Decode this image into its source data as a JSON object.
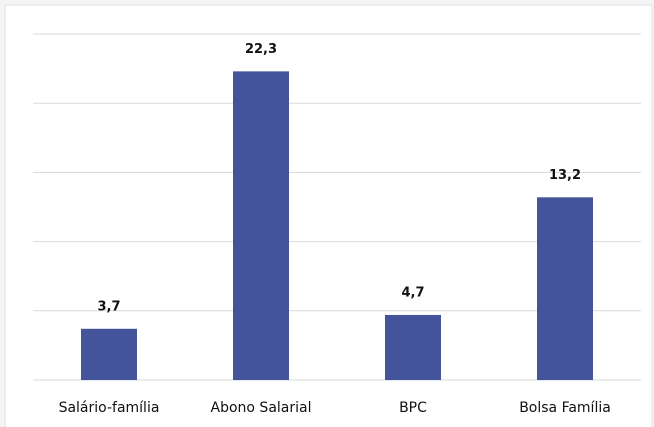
{
  "chart_data": {
    "type": "bar",
    "categories": [
      "Salário-família",
      "Abono Salarial",
      "BPC",
      "Bolsa Família"
    ],
    "values": [
      3.7,
      22.3,
      4.7,
      13.2
    ],
    "value_labels": [
      "3,7",
      "22,3",
      "4,7",
      "13,2"
    ],
    "color": "#44549a",
    "ylim": [
      0,
      25
    ],
    "yticks": [
      0,
      5,
      10,
      15,
      20,
      25
    ],
    "grid": true
  }
}
